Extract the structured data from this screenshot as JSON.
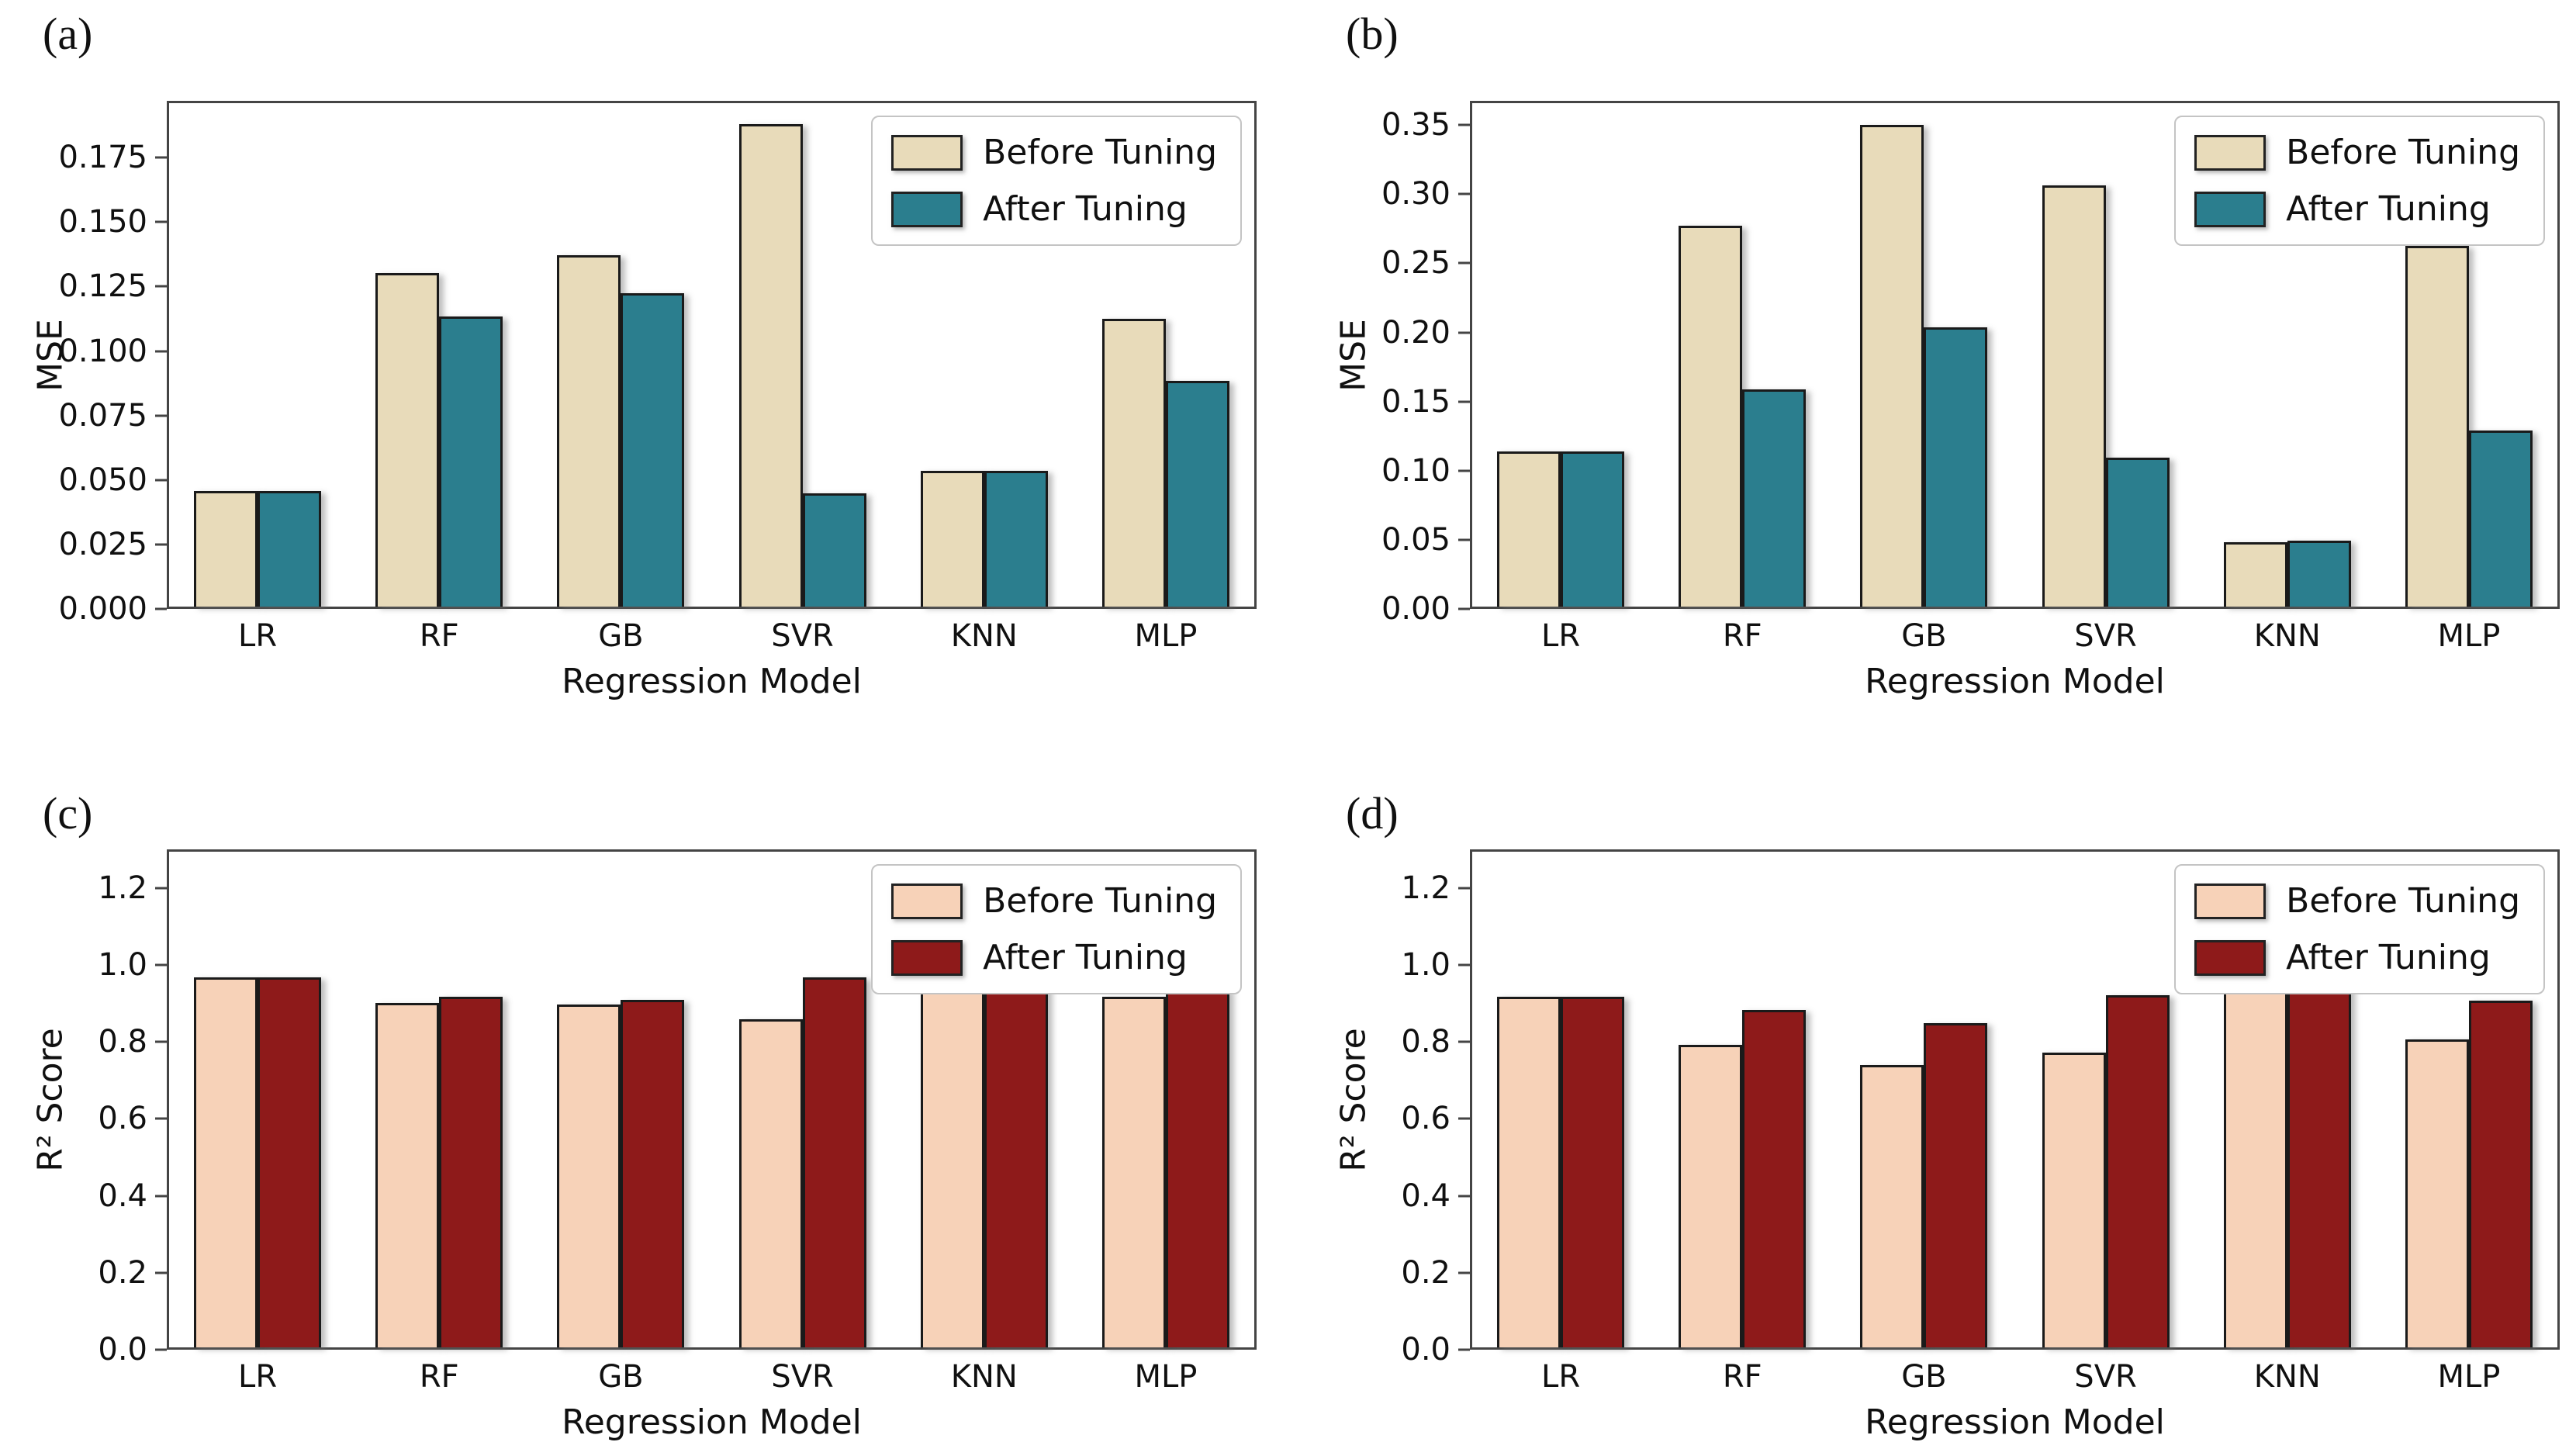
{
  "figure": {
    "background": "#ffffff",
    "panel_labels": [
      "(a)",
      "(b)",
      "(c)",
      "(d)"
    ],
    "legend_labels": [
      "Before Tuning",
      "After Tuning"
    ],
    "colors": {
      "mse_before": "#e8dbba",
      "mse_after": "#2b7e8e",
      "r2_before": "#f7d2b8",
      "r2_after": "#8e1a1a",
      "bar_edge": "#1a1a1a",
      "spine": "#444444"
    }
  },
  "chart_data": [
    {
      "panel_label": "(a)",
      "type": "bar",
      "title": "",
      "xlabel": "Regression Model",
      "ylabel": "MSE",
      "categories": [
        "LR",
        "RF",
        "GB",
        "SVR",
        "KNN",
        "MLP"
      ],
      "series": [
        {
          "name": "Before Tuning",
          "color": "#e8dbba",
          "values": [
            0.045,
            0.13,
            0.137,
            0.188,
            0.053,
            0.112
          ]
        },
        {
          "name": "After Tuning",
          "color": "#2b7e8e",
          "values": [
            0.045,
            0.113,
            0.122,
            0.044,
            0.053,
            0.088
          ]
        }
      ],
      "ylim": [
        0,
        0.197
      ],
      "yticks": [
        0.0,
        0.025,
        0.05,
        0.075,
        0.1,
        0.125,
        0.15,
        0.175
      ],
      "ytick_labels": [
        "0.000",
        "0.025",
        "0.050",
        "0.075",
        "0.100",
        "0.125",
        "0.150",
        "0.175"
      ],
      "legend_position": "upper right",
      "grid": false
    },
    {
      "panel_label": "(b)",
      "type": "bar",
      "title": "",
      "xlabel": "Regression Model",
      "ylabel": "MSE",
      "categories": [
        "LR",
        "RF",
        "GB",
        "SVR",
        "KNN",
        "MLP"
      ],
      "series": [
        {
          "name": "Before Tuning",
          "color": "#e8dbba",
          "values": [
            0.113,
            0.277,
            0.35,
            0.306,
            0.047,
            0.262
          ]
        },
        {
          "name": "After Tuning",
          "color": "#2b7e8e",
          "values": [
            0.113,
            0.158,
            0.203,
            0.108,
            0.048,
            0.128
          ]
        }
      ],
      "ylim": [
        0,
        0.3675
      ],
      "yticks": [
        0.0,
        0.05,
        0.1,
        0.15,
        0.2,
        0.25,
        0.3,
        0.35
      ],
      "ytick_labels": [
        "0.00",
        "0.05",
        "0.10",
        "0.15",
        "0.20",
        "0.25",
        "0.30",
        "0.35"
      ],
      "legend_position": "upper right",
      "grid": false
    },
    {
      "panel_label": "(c)",
      "type": "bar",
      "title": "",
      "xlabel": "Regression Model",
      "ylabel": "R² Score",
      "categories": [
        "LR",
        "RF",
        "GB",
        "SVR",
        "KNN",
        "MLP"
      ],
      "series": [
        {
          "name": "Before Tuning",
          "color": "#f7d2b8",
          "values": [
            0.965,
            0.9,
            0.895,
            0.857,
            0.96,
            0.916
          ]
        },
        {
          "name": "After Tuning",
          "color": "#8e1a1a",
          "values": [
            0.965,
            0.915,
            0.907,
            0.966,
            0.96,
            0.935
          ]
        }
      ],
      "ylim": [
        0,
        1.3
      ],
      "yticks": [
        0.0,
        0.2,
        0.4,
        0.6,
        0.8,
        1.0,
        1.2
      ],
      "ytick_labels": [
        "0.0",
        "0.2",
        "0.4",
        "0.6",
        "0.8",
        "1.0",
        "1.2"
      ],
      "legend_position": "upper right",
      "grid": false
    },
    {
      "panel_label": "(d)",
      "type": "bar",
      "title": "",
      "xlabel": "Regression Model",
      "ylabel": "R² Score",
      "categories": [
        "LR",
        "RF",
        "GB",
        "SVR",
        "KNN",
        "MLP"
      ],
      "series": [
        {
          "name": "Before Tuning",
          "color": "#f7d2b8",
          "values": [
            0.916,
            0.79,
            0.737,
            0.77,
            0.963,
            0.803
          ]
        },
        {
          "name": "After Tuning",
          "color": "#8e1a1a",
          "values": [
            0.916,
            0.88,
            0.846,
            0.92,
            0.963,
            0.905
          ]
        }
      ],
      "ylim": [
        0,
        1.3
      ],
      "yticks": [
        0.0,
        0.2,
        0.4,
        0.6,
        0.8,
        1.0,
        1.2
      ],
      "ytick_labels": [
        "0.0",
        "0.2",
        "0.4",
        "0.6",
        "0.8",
        "1.0",
        "1.2"
      ],
      "legend_position": "upper right",
      "grid": false
    }
  ]
}
